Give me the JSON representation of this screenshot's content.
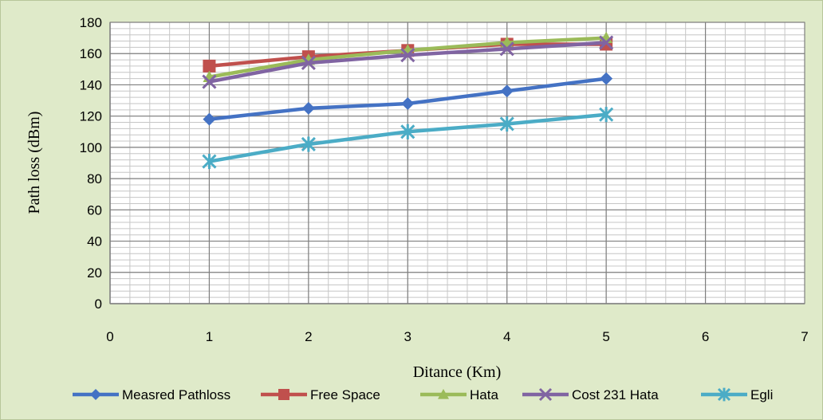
{
  "chart_data": {
    "type": "line",
    "xlabel": "Ditance (Km)",
    "ylabel": "Path loss (dBm)",
    "xlim": [
      0,
      7
    ],
    "ylim": [
      0,
      180
    ],
    "x_ticks": [
      0,
      1,
      2,
      3,
      4,
      5,
      6,
      7
    ],
    "y_ticks": [
      0,
      20,
      40,
      60,
      80,
      100,
      120,
      140,
      160,
      180
    ],
    "grid": true,
    "legend_position": "bottom",
    "background_color": "#dfeac9",
    "series": [
      {
        "name": "Measred Pathloss",
        "color": "#4472c4",
        "marker": "diamond",
        "x": [
          1,
          2,
          3,
          4,
          5
        ],
        "y": [
          118,
          125,
          128,
          136,
          144
        ]
      },
      {
        "name": "Free Space",
        "color": "#c0504d",
        "marker": "square",
        "x": [
          1,
          2,
          3,
          4,
          5
        ],
        "y": [
          152,
          158,
          162,
          166,
          166
        ]
      },
      {
        "name": "Hata",
        "color": "#9bbb59",
        "marker": "triangle",
        "x": [
          1,
          2,
          3,
          4,
          5
        ],
        "y": [
          145,
          156,
          162,
          167,
          170
        ]
      },
      {
        "name": "Cost 231 Hata",
        "color": "#8064a2",
        "marker": "x",
        "x": [
          1,
          2,
          3,
          4,
          5
        ],
        "y": [
          142,
          154,
          159,
          163,
          167
        ]
      },
      {
        "name": "Egli",
        "color": "#4bacc6",
        "marker": "star",
        "x": [
          1,
          2,
          3,
          4,
          5
        ],
        "y": [
          91,
          102,
          110,
          115,
          121
        ]
      }
    ]
  }
}
